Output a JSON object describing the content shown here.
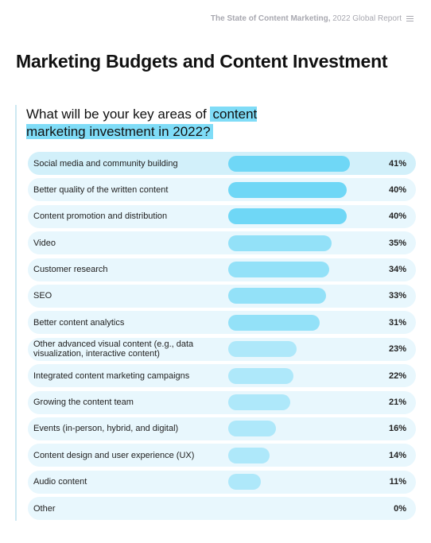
{
  "header": {
    "report_title": "The State of Content Marketing,",
    "report_subtitle": "2022 Global Report"
  },
  "page": {
    "title": "Marketing Budgets and Content Investment"
  },
  "chart_data": {
    "type": "bar",
    "orientation": "horizontal",
    "title_plain": "What will be your key areas of ",
    "title_highlight": "content marketing investment in 2022?",
    "categories": [
      "Social media and community building",
      "Better quality of the written content",
      "Content promotion and distribution",
      "Video",
      "Customer research",
      "SEO",
      "Better content analytics",
      "Other advanced visual content (e.g., data visualization, interactive content)",
      "Integrated content marketing campaigns",
      "Growing the content team",
      "Events (in-person, hybrid, and digital)",
      "Content design and user experience (UX)",
      "Audio content",
      "Other"
    ],
    "values": [
      41,
      40,
      40,
      35,
      34,
      33,
      31,
      23,
      22,
      21,
      16,
      14,
      11,
      0
    ],
    "value_labels": [
      "41%",
      "40%",
      "40%",
      "35%",
      "34%",
      "33%",
      "31%",
      "23%",
      "22%",
      "21%",
      "16%",
      "14%",
      "11%",
      "0%"
    ],
    "unit": "%",
    "xlim": [
      0,
      47
    ],
    "colors": {
      "bar_top": "#6fd7f6",
      "bar_mid": "#93e1f8",
      "bar_low": "#aee8fa",
      "row_bg": "#e8f7fd",
      "row_bg_top": "#d2f0fa",
      "highlight": "#7fdcf7"
    }
  }
}
